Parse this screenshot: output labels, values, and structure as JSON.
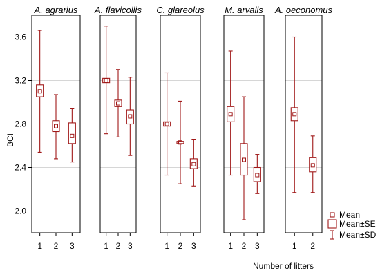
{
  "chart_data": {
    "type": "box",
    "ylabel": "BCI",
    "xlabel": "Number of litters",
    "ylim": [
      1.8,
      3.8
    ],
    "yticks": [
      2.0,
      2.4,
      2.8,
      3.2,
      3.6
    ],
    "ytick_labels": [
      "2.0",
      "2.4",
      "2.8",
      "3.2",
      "3.6"
    ],
    "grid": true,
    "series_color": "#a01818",
    "legend": {
      "position": "bottom-right",
      "items": [
        "Mean",
        "Mean±SE",
        "Mean±SD"
      ]
    },
    "panels": [
      {
        "title": "A. agrarius",
        "categories": [
          "1",
          "2",
          "3"
        ],
        "mean": [
          3.1,
          2.78,
          2.69
        ],
        "se_low": [
          3.05,
          2.73,
          2.62
        ],
        "se_high": [
          3.16,
          2.83,
          2.81
        ],
        "sd_low": [
          2.54,
          2.48,
          2.45
        ],
        "sd_high": [
          3.66,
          3.07,
          2.94
        ]
      },
      {
        "title": "A. flavicollis",
        "categories": [
          "1",
          "2",
          "3"
        ],
        "mean": [
          3.2,
          2.99,
          2.87
        ],
        "se_low": [
          3.18,
          2.96,
          2.8
        ],
        "se_high": [
          3.22,
          3.02,
          2.93
        ],
        "sd_low": [
          2.71,
          2.68,
          2.51
        ],
        "sd_high": [
          3.7,
          3.3,
          3.23
        ]
      },
      {
        "title": "C. glareolus",
        "categories": [
          "1",
          "2",
          "3"
        ],
        "mean": [
          2.8,
          2.63,
          2.43
        ],
        "se_low": [
          2.78,
          2.62,
          2.39
        ],
        "se_high": [
          2.82,
          2.64,
          2.48
        ],
        "sd_low": [
          2.33,
          2.25,
          2.23
        ],
        "sd_high": [
          3.27,
          3.01,
          2.66
        ]
      },
      {
        "title": "M. arvalis",
        "categories": [
          "1",
          "2",
          "3"
        ],
        "mean": [
          2.89,
          2.47,
          2.33
        ],
        "se_low": [
          2.82,
          2.33,
          2.27
        ],
        "se_high": [
          2.96,
          2.62,
          2.4
        ],
        "sd_low": [
          2.33,
          1.92,
          2.16
        ],
        "sd_high": [
          3.47,
          3.05,
          2.52
        ]
      },
      {
        "title": "A. oeconomus",
        "categories": [
          "1",
          "2"
        ],
        "mean": [
          2.89,
          2.42
        ],
        "se_low": [
          2.83,
          2.36
        ],
        "se_high": [
          2.95,
          2.49
        ],
        "sd_low": [
          2.17,
          2.17
        ],
        "sd_high": [
          3.6,
          2.69
        ]
      }
    ]
  }
}
